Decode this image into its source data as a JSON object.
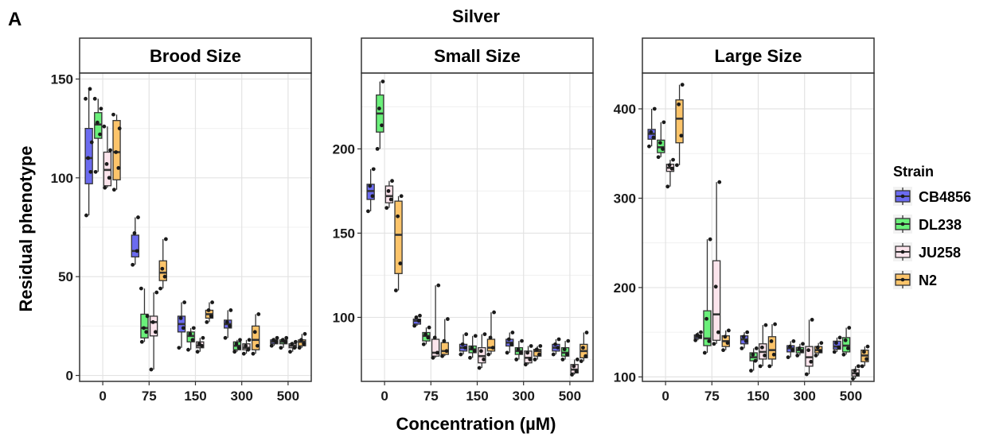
{
  "figure": {
    "panel_letter": "A",
    "title": "Silver",
    "xlabel": "Concentration (µM)",
    "ylabel": "Residual phenotype"
  },
  "legend": {
    "title": "Strain",
    "items": [
      {
        "name": "CB4856",
        "color": "#6b6bf0"
      },
      {
        "name": "DL238",
        "color": "#6af07a"
      },
      {
        "name": "JU258",
        "color": "#fce4ec"
      },
      {
        "name": "N2",
        "color": "#fcc46a"
      }
    ]
  },
  "chart_data": [
    {
      "type": "boxplot",
      "title": "Brood Size",
      "categories": [
        "0",
        "75",
        "150",
        "300",
        "500"
      ],
      "ylim": [
        -3,
        153
      ],
      "yticks": [
        0,
        50,
        100,
        150
      ],
      "grid": true,
      "series": [
        {
          "name": "CB4856",
          "boxes": [
            {
              "min": 81,
              "q1": 97,
              "median": 110,
              "q3": 125,
              "max": 145,
              "points": [
                81,
                103,
                110,
                118,
                140,
                145
              ]
            },
            {
              "min": 56,
              "q1": 60,
              "median": 63,
              "q3": 71,
              "max": 80,
              "points": [
                56,
                63,
                72,
                80
              ]
            },
            {
              "min": 14,
              "q1": 22,
              "median": 26,
              "q3": 30,
              "max": 37,
              "points": [
                14,
                24,
                29,
                37
              ]
            },
            {
              "min": 19,
              "q1": 24,
              "median": 26,
              "q3": 28,
              "max": 33,
              "points": [
                19,
                25,
                27,
                33
              ]
            },
            {
              "min": 15,
              "q1": 16,
              "median": 17,
              "q3": 18,
              "max": 19,
              "points": [
                15,
                17,
                18,
                19
              ]
            }
          ]
        },
        {
          "name": "DL238",
          "boxes": [
            {
              "min": 103,
              "q1": 120,
              "median": 127,
              "q3": 133,
              "max": 140,
              "points": [
                103,
                122,
                128,
                135,
                140
              ]
            },
            {
              "min": 17,
              "q1": 19,
              "median": 24,
              "q3": 31,
              "max": 44,
              "points": [
                17,
                22,
                24,
                30,
                44
              ]
            },
            {
              "min": 13,
              "q1": 17,
              "median": 20,
              "q3": 22,
              "max": 24,
              "points": [
                13,
                18,
                21,
                24
              ]
            },
            {
              "min": 12,
              "q1": 13,
              "median": 15,
              "q3": 17,
              "max": 18,
              "points": [
                12,
                14,
                16,
                18
              ]
            },
            {
              "min": 14,
              "q1": 16,
              "median": 17,
              "q3": 18,
              "max": 19,
              "points": [
                14,
                17,
                18,
                19
              ]
            }
          ]
        },
        {
          "name": "JU258",
          "boxes": [
            {
              "min": 95,
              "q1": 96,
              "median": 104,
              "q3": 113,
              "max": 126,
              "points": [
                95,
                100,
                107,
                114,
                126
              ]
            },
            {
              "min": 3,
              "q1": 20,
              "median": 27,
              "q3": 30,
              "max": 42,
              "points": [
                3,
                22,
                27,
                42
              ]
            },
            {
              "min": 12,
              "q1": 14,
              "median": 15,
              "q3": 17,
              "max": 19,
              "points": [
                12,
                15,
                16,
                19
              ]
            },
            {
              "min": 11,
              "q1": 13,
              "median": 14,
              "q3": 16,
              "max": 18,
              "points": [
                11,
                13,
                15,
                18
              ]
            },
            {
              "min": 12,
              "q1": 14,
              "median": 15,
              "q3": 16,
              "max": 17,
              "points": [
                12,
                14,
                16,
                17
              ]
            }
          ]
        },
        {
          "name": "N2",
          "boxes": [
            {
              "min": 94,
              "q1": 99,
              "median": 113,
              "q3": 129,
              "max": 132,
              "points": [
                94,
                105,
                113,
                125,
                132
              ]
            },
            {
              "min": 44,
              "q1": 48,
              "median": 52,
              "q3": 58,
              "max": 69,
              "points": [
                44,
                50,
                54,
                69
              ]
            },
            {
              "min": 27,
              "q1": 29,
              "median": 31,
              "q3": 33,
              "max": 37,
              "points": [
                27,
                30,
                33,
                37
              ]
            },
            {
              "min": 11,
              "q1": 13,
              "median": 18,
              "q3": 25,
              "max": 31,
              "points": [
                11,
                15,
                22,
                31
              ]
            },
            {
              "min": 14,
              "q1": 15,
              "median": 17,
              "q3": 18,
              "max": 21,
              "points": [
                14,
                16,
                18,
                21
              ]
            }
          ]
        }
      ]
    },
    {
      "type": "boxplot",
      "title": "Small Size",
      "categories": [
        "0",
        "75",
        "150",
        "300",
        "500"
      ],
      "ylim": [
        62,
        245
      ],
      "yticks": [
        100,
        150,
        200
      ],
      "grid": true,
      "series": [
        {
          "name": "CB4856",
          "boxes": [
            {
              "min": 163,
              "q1": 170,
              "median": 175,
              "q3": 179,
              "max": 188,
              "points": [
                163,
                172,
                178,
                188
              ]
            },
            {
              "min": 95,
              "q1": 96,
              "median": 98,
              "q3": 99,
              "max": 101,
              "points": [
                95,
                98,
                100,
                101
              ]
            },
            {
              "min": 78,
              "q1": 80,
              "median": 82,
              "q3": 84,
              "max": 90,
              "points": [
                78,
                82,
                84,
                90
              ]
            },
            {
              "min": 79,
              "q1": 83,
              "median": 85,
              "q3": 87,
              "max": 91,
              "points": [
                79,
                84,
                87,
                91
              ]
            },
            {
              "min": 78,
              "q1": 80,
              "median": 82,
              "q3": 84,
              "max": 87,
              "points": [
                78,
                82,
                84,
                87
              ]
            }
          ]
        },
        {
          "name": "DL238",
          "boxes": [
            {
              "min": 200,
              "q1": 210,
              "median": 221,
              "q3": 232,
              "max": 240,
              "points": [
                200,
                214,
                224,
                240
              ]
            },
            {
              "min": 84,
              "q1": 86,
              "median": 89,
              "q3": 91,
              "max": 94,
              "points": [
                84,
                88,
                90,
                94
              ]
            },
            {
              "min": 76,
              "q1": 79,
              "median": 81,
              "q3": 83,
              "max": 89,
              "points": [
                76,
                80,
                82,
                89
              ]
            },
            {
              "min": 75,
              "q1": 78,
              "median": 80,
              "q3": 82,
              "max": 86,
              "points": [
                75,
                79,
                81,
                86
              ]
            },
            {
              "min": 75,
              "q1": 77,
              "median": 79,
              "q3": 82,
              "max": 86,
              "points": [
                75,
                78,
                81,
                86
              ]
            }
          ]
        },
        {
          "name": "JU258",
          "boxes": [
            {
              "min": 165,
              "q1": 168,
              "median": 172,
              "q3": 178,
              "max": 181,
              "points": [
                165,
                170,
                175,
                181
              ]
            },
            {
              "min": 76,
              "q1": 77,
              "median": 79,
              "q3": 87,
              "max": 119,
              "points": [
                76,
                79,
                88,
                119
              ]
            },
            {
              "min": 70,
              "q1": 73,
              "median": 77,
              "q3": 82,
              "max": 90,
              "points": [
                70,
                75,
                80,
                90
              ]
            },
            {
              "min": 72,
              "q1": 73,
              "median": 76,
              "q3": 80,
              "max": 83,
              "points": [
                72,
                75,
                79,
                83
              ]
            },
            {
              "min": 66,
              "q1": 67,
              "median": 69,
              "q3": 72,
              "max": 75,
              "points": [
                66,
                68,
                71,
                75
              ]
            }
          ]
        },
        {
          "name": "N2",
          "boxes": [
            {
              "min": 116,
              "q1": 126,
              "median": 149,
              "q3": 169,
              "max": 172,
              "points": [
                116,
                132,
                160,
                172
              ]
            },
            {
              "min": 77,
              "q1": 78,
              "median": 80,
              "q3": 85,
              "max": 99,
              "points": [
                77,
                80,
                86,
                99
              ]
            },
            {
              "min": 78,
              "q1": 80,
              "median": 82,
              "q3": 87,
              "max": 103,
              "points": [
                78,
                82,
                88,
                103
              ]
            },
            {
              "min": 75,
              "q1": 77,
              "median": 80,
              "q3": 81,
              "max": 83,
              "points": [
                75,
                78,
                81,
                83
              ]
            },
            {
              "min": 74,
              "q1": 76,
              "median": 80,
              "q3": 84,
              "max": 91,
              "points": [
                74,
                77,
                82,
                91
              ]
            }
          ]
        }
      ]
    },
    {
      "type": "boxplot",
      "title": "Large Size",
      "categories": [
        "0",
        "75",
        "150",
        "300",
        "500"
      ],
      "ylim": [
        95,
        440
      ],
      "yticks": [
        100,
        200,
        300,
        400
      ],
      "grid": true,
      "series": [
        {
          "name": "CB4856",
          "boxes": [
            {
              "min": 358,
              "q1": 366,
              "median": 372,
              "q3": 377,
              "max": 400,
              "points": [
                358,
                368,
                374,
                400
              ]
            },
            {
              "min": 141,
              "q1": 143,
              "median": 145,
              "q3": 147,
              "max": 150,
              "points": [
                141,
                145,
                147,
                150
              ]
            },
            {
              "min": 132,
              "q1": 137,
              "median": 142,
              "q3": 146,
              "max": 150,
              "points": [
                132,
                140,
                145,
                150
              ]
            },
            {
              "min": 122,
              "q1": 128,
              "median": 132,
              "q3": 135,
              "max": 140,
              "points": [
                122,
                130,
                134,
                140
              ]
            },
            {
              "min": 128,
              "q1": 131,
              "median": 134,
              "q3": 140,
              "max": 144,
              "points": [
                128,
                133,
                138,
                144
              ]
            }
          ]
        },
        {
          "name": "DL238",
          "boxes": [
            {
              "min": 346,
              "q1": 351,
              "median": 357,
              "q3": 365,
              "max": 385,
              "points": [
                346,
                355,
                362,
                385
              ]
            },
            {
              "min": 127,
              "q1": 135,
              "median": 143,
              "q3": 174,
              "max": 254,
              "points": [
                127,
                140,
                165,
                254
              ]
            },
            {
              "min": 107,
              "q1": 118,
              "median": 122,
              "q3": 127,
              "max": 132,
              "points": [
                107,
                118,
                125,
                132
              ]
            },
            {
              "min": 124,
              "q1": 127,
              "median": 130,
              "q3": 133,
              "max": 137,
              "points": [
                124,
                129,
                132,
                137
              ]
            },
            {
              "min": 125,
              "q1": 128,
              "median": 135,
              "q3": 144,
              "max": 155,
              "points": [
                125,
                132,
                141,
                155
              ]
            }
          ]
        },
        {
          "name": "JU258",
          "boxes": [
            {
              "min": 313,
              "q1": 330,
              "median": 334,
              "q3": 338,
              "max": 343,
              "points": [
                313,
                333,
                337,
                343
              ]
            },
            {
              "min": 137,
              "q1": 141,
              "median": 170,
              "q3": 230,
              "max": 318,
              "points": [
                137,
                150,
                201,
                318
              ]
            },
            {
              "min": 112,
              "q1": 120,
              "median": 128,
              "q3": 137,
              "max": 158,
              "points": [
                112,
                124,
                133,
                158
              ]
            },
            {
              "min": 103,
              "q1": 112,
              "median": 122,
              "q3": 134,
              "max": 164,
              "points": [
                103,
                117,
                130,
                164
              ]
            },
            {
              "min": 98,
              "q1": 101,
              "median": 104,
              "q3": 108,
              "max": 112,
              "points": [
                98,
                103,
                107,
                112
              ]
            }
          ]
        },
        {
          "name": "N2",
          "boxes": [
            {
              "min": 337,
              "q1": 362,
              "median": 389,
              "q3": 410,
              "max": 427,
              "points": [
                337,
                370,
                405,
                427
              ]
            },
            {
              "min": 130,
              "q1": 134,
              "median": 140,
              "q3": 146,
              "max": 152,
              "points": [
                130,
                138,
                145,
                152
              ]
            },
            {
              "min": 112,
              "q1": 120,
              "median": 130,
              "q3": 145,
              "max": 159,
              "points": [
                112,
                125,
                140,
                159
              ]
            },
            {
              "min": 124,
              "q1": 127,
              "median": 130,
              "q3": 134,
              "max": 138,
              "points": [
                124,
                129,
                133,
                138
              ]
            },
            {
              "min": 112,
              "q1": 117,
              "median": 124,
              "q3": 130,
              "max": 134,
              "points": [
                112,
                120,
                128,
                134
              ]
            }
          ]
        }
      ]
    }
  ]
}
